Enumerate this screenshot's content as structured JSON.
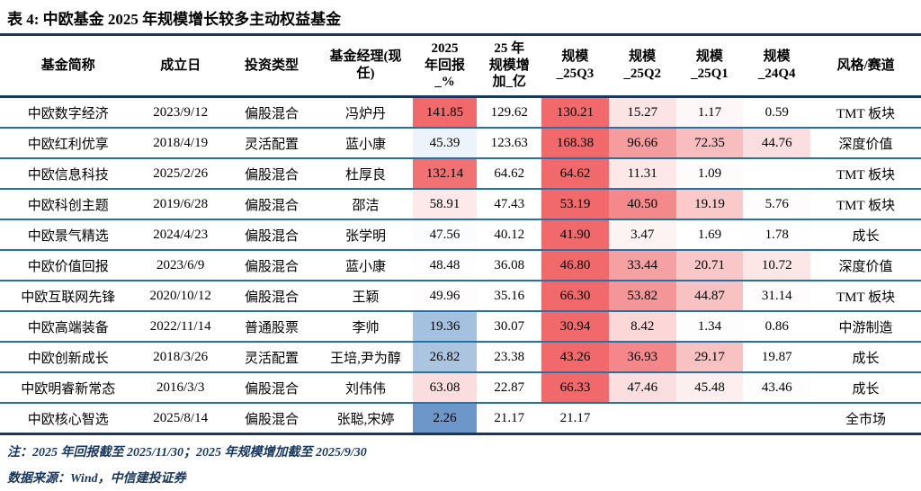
{
  "title": "表 4: 中欧基金 2025 年规模增长较多主动权益基金",
  "colors": {
    "rule_dark": "#17375E",
    "rule_blue": "#2470A8",
    "heat_red_max": "#F1696B",
    "heat_blue_max": "#6D96C9",
    "note_text": "#17375E"
  },
  "table": {
    "columns": [
      {
        "key": "name",
        "label": "基金简称"
      },
      {
        "key": "date",
        "label": "成立日"
      },
      {
        "key": "type",
        "label": "投资类型"
      },
      {
        "key": "manager",
        "label": "基金经理(现\n任)"
      },
      {
        "key": "ret",
        "label": "2025\n年回报\n_%"
      },
      {
        "key": "add",
        "label": "25 年\n规模增\n加_亿"
      },
      {
        "key": "q3",
        "label": "规模\n_25Q3"
      },
      {
        "key": "q2",
        "label": "规模\n_25Q2"
      },
      {
        "key": "q1",
        "label": "规模\n_25Q1"
      },
      {
        "key": "q4",
        "label": "规模\n_24Q4"
      },
      {
        "key": "style",
        "label": "风格/赛道"
      }
    ],
    "rows": [
      {
        "name": "中欧数字经济",
        "date": "2023/9/12",
        "type": "偏股混合",
        "manager": "冯炉丹",
        "ret": "141.85",
        "ret_bg": "#F1696B",
        "add": "129.62",
        "q3": "130.21",
        "q3_bg": "#F1696B",
        "q2": "15.27",
        "q2_bg": "#FCE4E4",
        "q1": "1.17",
        "q1_bg": "#FEF7F7",
        "q4": "0.59",
        "q4_bg": "#FFFFFF",
        "style": "TMT 板块"
      },
      {
        "name": "中欧红利优享",
        "date": "2018/4/19",
        "type": "灵活配置",
        "manager": "蓝小康",
        "ret": "45.39",
        "ret_bg": "#EDF3FA",
        "add": "123.63",
        "q3": "168.38",
        "q3_bg": "#F1696B",
        "q2": "96.66",
        "q2_bg": "#F59C9E",
        "q1": "72.35",
        "q1_bg": "#F8BDBF",
        "q4": "44.76",
        "q4_bg": "#FBDEDF",
        "style": "深度价值"
      },
      {
        "name": "中欧信息科技",
        "date": "2025/2/26",
        "type": "偏股混合",
        "manager": "杜厚良",
        "ret": "132.14",
        "ret_bg": "#F27173",
        "add": "64.62",
        "q3": "64.62",
        "q3_bg": "#F1696B",
        "q2": "11.31",
        "q2_bg": "#FDE7E7",
        "q1": "1.09",
        "q1_bg": "#FEFBFB",
        "q4": "",
        "q4_bg": "#FFFFFF",
        "style": "TMT 板块"
      },
      {
        "name": "中欧科创主题",
        "date": "2019/6/28",
        "type": "偏股混合",
        "manager": "邵洁",
        "ret": "58.91",
        "ret_bg": "#FDE9E9",
        "add": "47.43",
        "q3": "53.19",
        "q3_bg": "#F1696B",
        "q2": "40.50",
        "q2_bg": "#F4898B",
        "q1": "19.19",
        "q1_bg": "#FAC9CA",
        "q4": "5.76",
        "q4_bg": "#FEFCFC",
        "style": "TMT 板块"
      },
      {
        "name": "中欧景气精选",
        "date": "2024/4/23",
        "type": "偏股混合",
        "manager": "张学明",
        "ret": "47.56",
        "ret_bg": "#FBFCFE",
        "add": "40.12",
        "q3": "41.90",
        "q3_bg": "#F1696B",
        "q2": "3.47",
        "q2_bg": "#FDF3F3",
        "q1": "1.69",
        "q1_bg": "#FFFFFF",
        "q4": "1.78",
        "q4_bg": "#FEFEFE",
        "style": "成长"
      },
      {
        "name": "中欧价值回报",
        "date": "2023/6/9",
        "type": "偏股混合",
        "manager": "蓝小康",
        "ret": "48.48",
        "ret_bg": "#FEFEFF",
        "add": "36.08",
        "q3": "46.80",
        "q3_bg": "#F1696B",
        "q2": "33.44",
        "q2_bg": "#F5A0A2",
        "q1": "20.71",
        "q1_bg": "#F9C7C8",
        "q4": "10.72",
        "q4_bg": "#FCE6E6",
        "style": "深度价值"
      },
      {
        "name": "中欧互联网先锋",
        "date": "2020/10/12",
        "type": "偏股混合",
        "manager": "王颖",
        "ret": "49.96",
        "ret_bg": "#FEFCFC",
        "add": "35.16",
        "q3": "66.30",
        "q3_bg": "#F1696B",
        "q2": "53.82",
        "q2_bg": "#F49698",
        "q1": "44.87",
        "q1_bg": "#F8C2C3",
        "q4": "31.14",
        "q4_bg": "#FEFCFC",
        "style": "TMT 板块"
      },
      {
        "name": "中欧高端装备",
        "date": "2022/11/14",
        "type": "普通股票",
        "manager": "李帅",
        "ret": "19.36",
        "ret_bg": "#A4C1DF",
        "add": "30.07",
        "q3": "30.94",
        "q3_bg": "#F1696B",
        "q2": "8.42",
        "q2_bg": "#FBD7D8",
        "q1": "1.34",
        "q1_bg": "#FEFDFD",
        "q4": "0.86",
        "q4_bg": "#FFFFFF",
        "style": "中游制造"
      },
      {
        "name": "中欧创新成长",
        "date": "2018/3/26",
        "type": "灵活配置",
        "manager": "王培,尹为醇",
        "ret": "26.82",
        "ret_bg": "#ABC5E1",
        "add": "23.38",
        "q3": "43.26",
        "q3_bg": "#F1696B",
        "q2": "36.93",
        "q2_bg": "#F48789",
        "q1": "29.17",
        "q1_bg": "#F8C2C3",
        "q4": "19.87",
        "q4_bg": "#FFFFFF",
        "style": "成长"
      },
      {
        "name": "中欧明睿新常态",
        "date": "2016/3/3",
        "type": "偏股混合",
        "manager": "刘伟伟",
        "ret": "63.08",
        "ret_bg": "#FBDDDE",
        "add": "22.87",
        "q3": "66.33",
        "q3_bg": "#F1696B",
        "q2": "47.46",
        "q2_bg": "#FBDFE0",
        "q1": "45.48",
        "q1_bg": "#FDEFEF",
        "q4": "43.46",
        "q4_bg": "#FEFDFD",
        "style": "成长"
      },
      {
        "name": "中欧核心智选",
        "date": "2025/8/14",
        "type": "偏股混合",
        "manager": "张聪,宋婷",
        "ret": "2.26",
        "ret_bg": "#6D96C9",
        "add": "21.17",
        "q3": "21.17",
        "q3_bg": "#FFFFFF",
        "q2": "",
        "q2_bg": "#FFFFFF",
        "q1": "",
        "q1_bg": "#FFFFFF",
        "q4": "",
        "q4_bg": "#FFFFFF",
        "style": "全市场"
      }
    ]
  },
  "notes": [
    "注：2025 年回报截至 2025/11/30；2025 年规模增加截至 2025/9/30",
    "数据来源：Wind，中信建投证券"
  ]
}
